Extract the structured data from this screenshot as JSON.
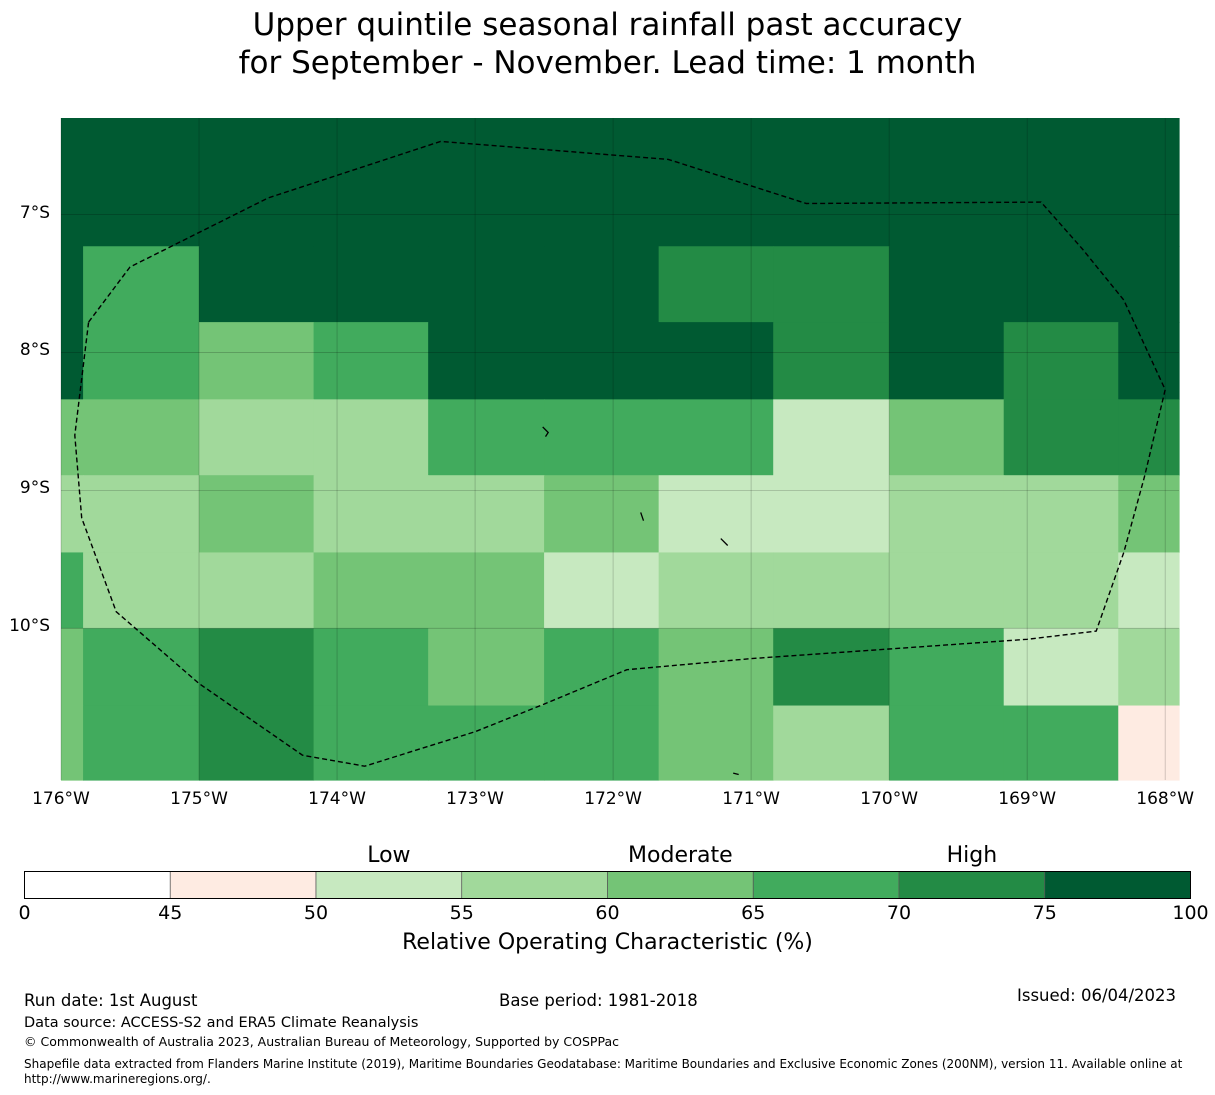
{
  "title": {
    "line1": "Upper quintile seasonal rainfall past accuracy",
    "line2": "for September - November. Lead time: 1 month"
  },
  "map": {
    "lon_range": [
      -176,
      -167.9
    ],
    "lat_range": [
      -11.1,
      -6.3
    ],
    "lat_ticks": [
      {
        "value": -7,
        "label": "7°S"
      },
      {
        "value": -8,
        "label": "8°S"
      },
      {
        "value": -9,
        "label": "9°S"
      },
      {
        "value": -10,
        "label": "10°S"
      }
    ],
    "lon_ticks": [
      {
        "value": -176,
        "label": "176°W"
      },
      {
        "value": -175,
        "label": "175°W"
      },
      {
        "value": -174,
        "label": "174°W"
      },
      {
        "value": -173,
        "label": "173°W"
      },
      {
        "value": -172,
        "label": "172°W"
      },
      {
        "value": -171,
        "label": "171°W"
      },
      {
        "value": -170,
        "label": "170°W"
      },
      {
        "value": -169,
        "label": "169°W"
      },
      {
        "value": -168,
        "label": "168°W"
      }
    ],
    "gridlines": true,
    "grid_columns_lon": [
      -176,
      -175.84,
      -175,
      -174.17,
      -173.34,
      -172.5,
      -171.67,
      -170.84,
      -170,
      -169.17,
      -168.34,
      -167.9
    ],
    "grid_rows_lat": [
      -6.3,
      -7.23,
      -7.78,
      -8.34,
      -8.89,
      -9.45,
      -10.0,
      -10.56,
      -11.1
    ],
    "roc_grid_percent": [
      [
        77,
        77,
        77,
        77,
        77,
        77,
        77,
        77,
        77,
        77,
        77
      ],
      [
        77,
        67,
        77,
        77,
        77,
        77,
        72,
        72,
        77,
        77,
        77
      ],
      [
        77,
        67,
        62,
        67,
        77,
        77,
        77,
        72,
        77,
        72,
        77
      ],
      [
        62,
        62,
        57,
        57,
        67,
        67,
        67,
        52,
        62,
        72,
        72
      ],
      [
        57,
        57,
        62,
        57,
        57,
        62,
        52,
        52,
        57,
        57,
        62
      ],
      [
        67,
        57,
        57,
        62,
        62,
        52,
        57,
        57,
        57,
        57,
        52
      ],
      [
        62,
        67,
        72,
        67,
        62,
        67,
        62,
        72,
        67,
        52,
        57
      ],
      [
        62,
        67,
        72,
        67,
        67,
        67,
        62,
        57,
        67,
        67,
        47
      ]
    ],
    "eez_boundary_lonlat": [
      [
        -175.8,
        -7.78
      ],
      [
        -175.5,
        -7.38
      ],
      [
        -175.0,
        -7.13
      ],
      [
        -174.5,
        -6.88
      ],
      [
        -173.25,
        -6.47
      ],
      [
        -171.6,
        -6.6
      ],
      [
        -170.6,
        -6.92
      ],
      [
        -168.9,
        -6.91
      ],
      [
        -168.6,
        -7.25
      ],
      [
        -168.3,
        -7.62
      ],
      [
        -168.0,
        -8.27
      ],
      [
        -168.15,
        -8.9
      ],
      [
        -168.3,
        -9.45
      ],
      [
        -168.5,
        -10.02
      ],
      [
        -169.0,
        -10.08
      ],
      [
        -170.0,
        -10.15
      ],
      [
        -171.0,
        -10.22
      ],
      [
        -171.9,
        -10.3
      ],
      [
        -172.5,
        -10.55
      ],
      [
        -173.0,
        -10.75
      ],
      [
        -173.8,
        -11.0
      ],
      [
        -174.25,
        -10.92
      ],
      [
        -175.0,
        -10.4
      ],
      [
        -175.6,
        -9.88
      ],
      [
        -175.85,
        -9.2
      ],
      [
        -175.9,
        -8.6
      ],
      [
        -175.8,
        -7.78
      ]
    ],
    "islands_lonlat": [
      [
        [
          -172.51,
          -8.54
        ],
        [
          -172.47,
          -8.58
        ],
        [
          -172.49,
          -8.61
        ]
      ],
      [
        [
          -171.8,
          -9.16
        ],
        [
          -171.78,
          -9.22
        ]
      ],
      [
        [
          -171.22,
          -9.35
        ],
        [
          -171.17,
          -9.4
        ]
      ],
      [
        [
          -171.13,
          -11.05
        ],
        [
          -171.09,
          -11.06
        ]
      ]
    ]
  },
  "colorbar": {
    "bounds": [
      0,
      45,
      50,
      55,
      60,
      65,
      70,
      75,
      100
    ],
    "tick_labels": [
      "0",
      "45",
      "50",
      "55",
      "60",
      "65",
      "70",
      "75",
      "100"
    ],
    "colors": [
      "#ffffff",
      "#feebe2",
      "#c7e9c0",
      "#a1d99b",
      "#74c476",
      "#41ab5d",
      "#238b45",
      "#005a32"
    ],
    "categories": [
      {
        "label": "Low",
        "center_value": 52.5
      },
      {
        "label": "Moderate",
        "center_value": 62.5
      },
      {
        "label": "High",
        "center_value": 72.5
      }
    ],
    "label": "Relative Operating Characteristic (%)"
  },
  "footer": {
    "run_date": "Run date: 1st August",
    "base_period": "Base period: 1981-2018",
    "issued": "Issued: 06/04/2023",
    "data_source": "Data source: ACCESS-S2 and ERA5 Climate Reanalysis",
    "copyright": "© Commonwealth of Australia 2023, Australian Bureau of Meteorology, Supported by COSPPac",
    "shapefile": "Shapefile data extracted from Flanders Marine Institute (2019), Maritime Boundaries Geodatabase: Maritime Boundaries and Exclusive Economic Zones (200NM), version 11. Available online at http://www.marineregions.org/."
  }
}
